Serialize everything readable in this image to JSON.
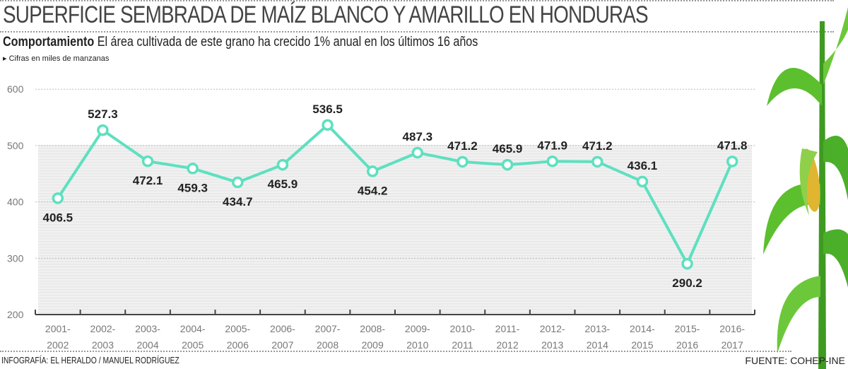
{
  "title": "SUPERFICIE SEMBRADA DE MAÍZ BLANCO Y AMARILLO  EN HONDURAS",
  "subtitle_bold": "Comportamiento",
  "subtitle": "El área cultivada de este grano ha crecido 1% anual en los últimos 16 años",
  "note": "▸ Cifras en miles de manzanas",
  "credit": "INFOGRAFÍA: EL HERALDO / MANUEL RODRÍGUEZ",
  "source": "FUENTE: COHEP-INE",
  "colors": {
    "line": "#5ee0c0",
    "plant": "#4caf2a"
  },
  "chart_data": {
    "type": "line",
    "categories": [
      [
        "2001-",
        "2002"
      ],
      [
        "2002-",
        "2003"
      ],
      [
        "2003-",
        "2004"
      ],
      [
        "2004-",
        "2005"
      ],
      [
        "2005-",
        "2006"
      ],
      [
        "2006-",
        "2007"
      ],
      [
        "2007-",
        "2008"
      ],
      [
        "2008-",
        "2009"
      ],
      [
        "2009-",
        "2010"
      ],
      [
        "2010-",
        "2011"
      ],
      [
        "2011-",
        "2012"
      ],
      [
        "2012-",
        "2013"
      ],
      [
        "2013-",
        "2014"
      ],
      [
        "2014-",
        "2015"
      ],
      [
        "2015-",
        "2016"
      ],
      [
        "2016-",
        "2017"
      ]
    ],
    "values": [
      406.5,
      527.3,
      472.1,
      459.3,
      434.7,
      465.9,
      536.5,
      454.2,
      487.3,
      471.2,
      465.9,
      471.9,
      471.2,
      436.1,
      290.2,
      471.8
    ],
    "labels": [
      "406.5",
      "527.3",
      "472.1",
      "459.3",
      "434.7",
      "465.9",
      "536.5",
      "454.2",
      "487.3",
      "471.2",
      "465.9",
      "471.9",
      "471.2",
      "436.1",
      "290.2",
      "471.8"
    ],
    "label_pos": [
      "below",
      "above",
      "below",
      "below",
      "below",
      "below",
      "above",
      "below",
      "above",
      "above",
      "above",
      "above",
      "above",
      "above",
      "below",
      "above"
    ],
    "yticks": [
      200,
      300,
      400,
      500,
      600
    ],
    "ylim": [
      200,
      600
    ],
    "grid": true
  }
}
